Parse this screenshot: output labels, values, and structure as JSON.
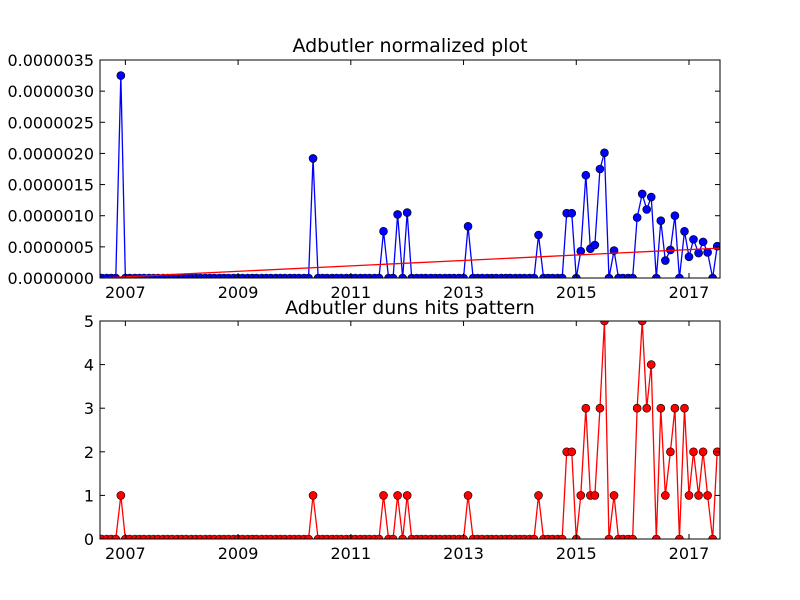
{
  "chart_data": [
    {
      "type": "line",
      "title": "Adbutler normalized plot",
      "xlabel": "",
      "ylabel": "",
      "xlim": [
        2006.55,
        2017.55
      ],
      "ylim": [
        0,
        3.5e-06
      ],
      "x_ticks": [
        2007,
        2009,
        2011,
        2013,
        2015,
        2017
      ],
      "x_tick_labels": [
        "2007",
        "2009",
        "2011",
        "2013",
        "2015",
        "2017"
      ],
      "y_ticks": [
        0,
        5e-07,
        1e-06,
        1.5e-06,
        2e-06,
        2.5e-06,
        3e-06,
        3.5e-06
      ],
      "y_tick_labels": [
        "0.0000000",
        "0.0000005",
        "0.0000010",
        "0.0000015",
        "0.0000020",
        "0.0000025",
        "0.0000030",
        "0.0000035"
      ],
      "grid": false,
      "series": [
        {
          "color": "#0000ff",
          "marker": "circle",
          "x": [
            2006.58,
            2006.67,
            2006.75,
            2006.83,
            2006.92,
            2007.0,
            2007.08,
            2007.17,
            2007.25,
            2007.33,
            2007.42,
            2007.5,
            2007.58,
            2007.67,
            2007.75,
            2007.83,
            2007.92,
            2008.0,
            2008.08,
            2008.17,
            2008.25,
            2008.33,
            2008.42,
            2008.5,
            2008.58,
            2008.67,
            2008.75,
            2008.83,
            2008.92,
            2009.0,
            2009.08,
            2009.17,
            2009.25,
            2009.33,
            2009.42,
            2009.5,
            2009.58,
            2009.67,
            2009.75,
            2009.83,
            2009.92,
            2010.0,
            2010.08,
            2010.17,
            2010.25,
            2010.33,
            2010.42,
            2010.5,
            2010.58,
            2010.67,
            2010.75,
            2010.83,
            2010.92,
            2011.0,
            2011.08,
            2011.17,
            2011.25,
            2011.33,
            2011.42,
            2011.5,
            2011.58,
            2011.67,
            2011.75,
            2011.83,
            2011.92,
            2012.0,
            2012.08,
            2012.17,
            2012.25,
            2012.33,
            2012.42,
            2012.5,
            2012.58,
            2012.67,
            2012.75,
            2012.83,
            2012.92,
            2013.0,
            2013.08,
            2013.17,
            2013.25,
            2013.33,
            2013.42,
            2013.5,
            2013.58,
            2013.67,
            2013.75,
            2013.83,
            2013.92,
            2014.0,
            2014.08,
            2014.17,
            2014.25,
            2014.33,
            2014.42,
            2014.5,
            2014.58,
            2014.67,
            2014.75,
            2014.83,
            2014.92,
            2015.0,
            2015.08,
            2015.17,
            2015.25,
            2015.33,
            2015.42,
            2015.5,
            2015.58,
            2015.67,
            2015.75,
            2015.83,
            2015.92,
            2016.0,
            2016.08,
            2016.17,
            2016.25,
            2016.33,
            2016.42,
            2016.5,
            2016.58,
            2016.67,
            2016.75,
            2016.83,
            2016.92,
            2017.0,
            2017.08,
            2017.17,
            2017.25,
            2017.33,
            2017.42,
            2017.5
          ],
          "y": [
            0,
            0,
            0,
            0,
            3.25e-06,
            0,
            0,
            0,
            0,
            0,
            0,
            0,
            0,
            0,
            0,
            0,
            0,
            0,
            0,
            0,
            0,
            0,
            0,
            0,
            0,
            0,
            0,
            0,
            0,
            0,
            0,
            0,
            0,
            0,
            0,
            0,
            0,
            0,
            0,
            0,
            0,
            0,
            0,
            0,
            0,
            1.92e-06,
            0,
            0,
            0,
            0,
            0,
            0,
            0,
            0,
            0,
            0,
            0,
            0,
            0,
            0,
            7.5e-07,
            0,
            0,
            1.02e-06,
            0,
            1.05e-06,
            0,
            0,
            0,
            0,
            0,
            0,
            0,
            0,
            0,
            0,
            0,
            0,
            8.3e-07,
            0,
            0,
            0,
            0,
            0,
            0,
            0,
            0,
            0,
            0,
            0,
            0,
            0,
            0,
            6.9e-07,
            0,
            0,
            0,
            0,
            0,
            1.04e-06,
            1.04e-06,
            0,
            4.3e-07,
            1.65e-06,
            4.7e-07,
            5.3e-07,
            1.75e-06,
            2.01e-06,
            0,
            4.4e-07,
            0,
            0,
            0,
            0,
            9.7e-07,
            1.35e-06,
            1.1e-06,
            1.3e-06,
            0,
            9.2e-07,
            2.8e-07,
            4.5e-07,
            1e-06,
            0,
            7.5e-07,
            3.4e-07,
            6.2e-07,
            4e-07,
            5.8e-07,
            4.1e-07,
            0,
            5.1e-07
          ]
        },
        {
          "color": "#ff0000",
          "marker": "none",
          "x": [
            2006.55,
            2017.55
          ],
          "y": [
            0,
            4.8e-07
          ]
        }
      ]
    },
    {
      "type": "line",
      "title": "Adbutler duns hits pattern",
      "xlabel": "",
      "ylabel": "",
      "xlim": [
        2006.55,
        2017.55
      ],
      "ylim": [
        0,
        5
      ],
      "x_ticks": [
        2007,
        2009,
        2011,
        2013,
        2015,
        2017
      ],
      "x_tick_labels": [
        "2007",
        "2009",
        "2011",
        "2013",
        "2015",
        "2017"
      ],
      "y_ticks": [
        0,
        1,
        2,
        3,
        4,
        5
      ],
      "y_tick_labels": [
        "0",
        "1",
        "2",
        "3",
        "4",
        "5"
      ],
      "grid": false,
      "series": [
        {
          "color": "#ff0000",
          "marker": "circle",
          "x": [
            2006.58,
            2006.67,
            2006.75,
            2006.83,
            2006.92,
            2007.0,
            2007.08,
            2007.17,
            2007.25,
            2007.33,
            2007.42,
            2007.5,
            2007.58,
            2007.67,
            2007.75,
            2007.83,
            2007.92,
            2008.0,
            2008.08,
            2008.17,
            2008.25,
            2008.33,
            2008.42,
            2008.5,
            2008.58,
            2008.67,
            2008.75,
            2008.83,
            2008.92,
            2009.0,
            2009.08,
            2009.17,
            2009.25,
            2009.33,
            2009.42,
            2009.5,
            2009.58,
            2009.67,
            2009.75,
            2009.83,
            2009.92,
            2010.0,
            2010.08,
            2010.17,
            2010.25,
            2010.33,
            2010.42,
            2010.5,
            2010.58,
            2010.67,
            2010.75,
            2010.83,
            2010.92,
            2011.0,
            2011.08,
            2011.17,
            2011.25,
            2011.33,
            2011.42,
            2011.5,
            2011.58,
            2011.67,
            2011.75,
            2011.83,
            2011.92,
            2012.0,
            2012.08,
            2012.17,
            2012.25,
            2012.33,
            2012.42,
            2012.5,
            2012.58,
            2012.67,
            2012.75,
            2012.83,
            2012.92,
            2013.0,
            2013.08,
            2013.17,
            2013.25,
            2013.33,
            2013.42,
            2013.5,
            2013.58,
            2013.67,
            2013.75,
            2013.83,
            2013.92,
            2014.0,
            2014.08,
            2014.17,
            2014.25,
            2014.33,
            2014.42,
            2014.5,
            2014.58,
            2014.67,
            2014.75,
            2014.83,
            2014.92,
            2015.0,
            2015.08,
            2015.17,
            2015.25,
            2015.33,
            2015.42,
            2015.5,
            2015.58,
            2015.67,
            2015.75,
            2015.83,
            2015.92,
            2016.0,
            2016.08,
            2016.17,
            2016.25,
            2016.33,
            2016.42,
            2016.5,
            2016.58,
            2016.67,
            2016.75,
            2016.83,
            2016.92,
            2017.0,
            2017.08,
            2017.17,
            2017.25,
            2017.33,
            2017.42,
            2017.5
          ],
          "y": [
            0,
            0,
            0,
            0,
            1,
            0,
            0,
            0,
            0,
            0,
            0,
            0,
            0,
            0,
            0,
            0,
            0,
            0,
            0,
            0,
            0,
            0,
            0,
            0,
            0,
            0,
            0,
            0,
            0,
            0,
            0,
            0,
            0,
            0,
            0,
            0,
            0,
            0,
            0,
            0,
            0,
            0,
            0,
            0,
            0,
            1,
            0,
            0,
            0,
            0,
            0,
            0,
            0,
            0,
            0,
            0,
            0,
            0,
            0,
            0,
            1,
            0,
            0,
            1,
            0,
            1,
            0,
            0,
            0,
            0,
            0,
            0,
            0,
            0,
            0,
            0,
            0,
            0,
            1,
            0,
            0,
            0,
            0,
            0,
            0,
            0,
            0,
            0,
            0,
            0,
            0,
            0,
            0,
            1,
            0,
            0,
            0,
            0,
            0,
            2,
            2,
            0,
            1,
            3,
            1,
            1,
            3,
            5,
            0,
            1,
            0,
            0,
            0,
            0,
            3,
            5,
            3,
            4,
            0,
            3,
            1,
            2,
            3,
            0,
            3,
            1,
            2,
            1,
            2,
            1,
            0,
            2
          ]
        }
      ]
    }
  ]
}
